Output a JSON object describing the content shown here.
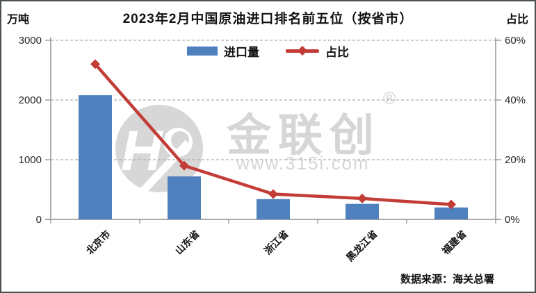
{
  "header": {
    "title": "2023年2月中国原油进口排名前五位（按省市）",
    "unit_left": "万吨",
    "unit_right": "占比"
  },
  "legend": {
    "bar_label": "进口量",
    "line_label": "占比"
  },
  "watermark": {
    "logo": "jlc-circle-logo",
    "brand": "金联创",
    "registered": "®",
    "url": "www.315i.com"
  },
  "footer": {
    "source": "数据来源：海关总署"
  },
  "colors": {
    "bar": "#4e81bd",
    "line": "#c33d38",
    "grid": "#adadad",
    "axis": "#9b9b9b",
    "tick_text": "#262626",
    "watermark": "#d6d6d6",
    "border": "#49534c"
  },
  "chart_data": {
    "type": "bar",
    "title": "2023年2月中国原油进口排名前五位（按省市）",
    "categories": [
      "北京市",
      "山东省",
      "浙江省",
      "黑龙江省",
      "福建省"
    ],
    "series": [
      {
        "name": "进口量",
        "type": "bar",
        "axis": "left",
        "unit": "万吨",
        "values": [
          2080,
          720,
          340,
          260,
          200
        ]
      },
      {
        "name": "占比",
        "type": "line",
        "axis": "right",
        "unit": "%",
        "values": [
          52,
          18,
          8.5,
          7,
          5
        ]
      }
    ],
    "axes": {
      "left": {
        "label": "万吨",
        "min": 0,
        "max": 3000,
        "ticks": [
          0,
          1000,
          2000,
          3000
        ],
        "suffix": ""
      },
      "right": {
        "label": "占比",
        "min": 0,
        "max": 60,
        "ticks": [
          0,
          20,
          40,
          60
        ],
        "suffix": "%"
      }
    },
    "grid": "horizontal dashed lines at left-axis ticks",
    "legend_position": "top-center"
  }
}
